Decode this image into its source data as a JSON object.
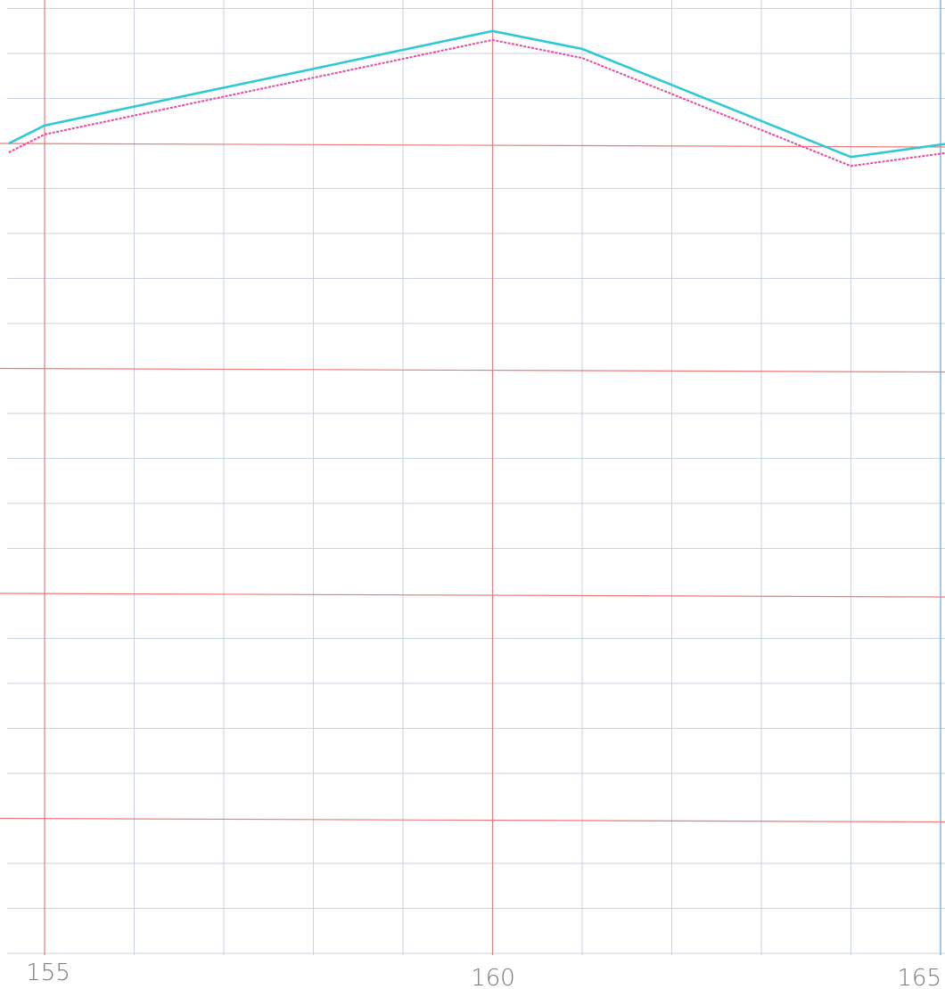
{
  "chart_data": {
    "type": "line",
    "title": "",
    "xlabel": "",
    "ylabel": "",
    "xlim": [
      154.6,
      165.1
    ],
    "ylim": [
      0,
      21
    ],
    "x_ticks": [
      155,
      160,
      165
    ],
    "x_tick_labels": [
      "155",
      "160",
      "165"
    ],
    "grid": true,
    "grid_major_x": [
      155,
      160,
      165
    ],
    "grid_major_y": [
      3,
      8,
      13,
      18
    ],
    "grid_minor_step": 1,
    "colors": {
      "minor_grid": "#c9d3e3",
      "major_grid": "#ee7a7a",
      "series_1": "#2fc8d6",
      "series_2": "#e84aa0",
      "tick_label": "#7a7a7a"
    },
    "series": [
      {
        "x": [
          154.6,
          155,
          160,
          161,
          164,
          165.1
        ],
        "y": [
          18.0,
          18.4,
          20.5,
          20.1,
          17.7,
          18.0
        ]
      },
      {
        "x": [
          154.6,
          155,
          160,
          161,
          164,
          165.1
        ],
        "y": [
          17.8,
          18.2,
          20.3,
          19.9,
          17.5,
          17.8
        ]
      }
    ]
  }
}
